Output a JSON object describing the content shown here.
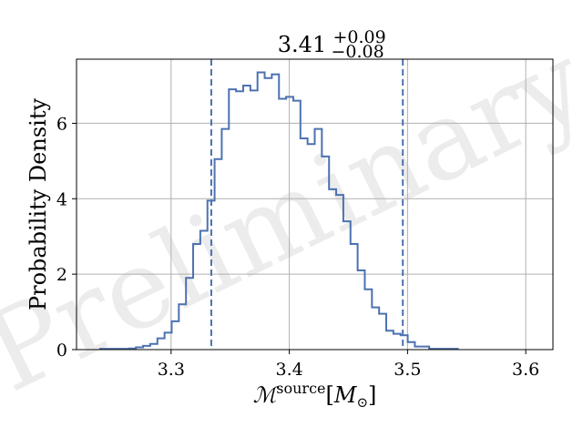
{
  "chart_data": {
    "type": "histogram",
    "title": {
      "value": "3.41",
      "upper": "+0.09",
      "lower": "−0.08"
    },
    "xlabel": {
      "symbol": "ℳ",
      "superscript": "source",
      "units_open": "[",
      "units_symbol": "M",
      "units_subscript": "⊙",
      "units_close": "]"
    },
    "ylabel": "Probability Density",
    "watermark": "Preliminary",
    "xlim": [
      3.22,
      3.623
    ],
    "ylim": [
      0,
      7.7
    ],
    "x_ticks": [
      {
        "value": 3.3,
        "label": "3.3"
      },
      {
        "value": 3.4,
        "label": "3.4"
      },
      {
        "value": 3.5,
        "label": "3.5"
      },
      {
        "value": 3.6,
        "label": "3.6"
      }
    ],
    "y_ticks": [
      {
        "value": 0,
        "label": "0"
      },
      {
        "value": 2,
        "label": "2"
      },
      {
        "value": 4,
        "label": "4"
      },
      {
        "value": 6,
        "label": "6"
      }
    ],
    "grid": true,
    "bin_start": 3.24,
    "bin_width": 0.00605,
    "densities": [
      0.02,
      0.02,
      0.02,
      0.02,
      0.03,
      0.06,
      0.1,
      0.15,
      0.3,
      0.45,
      0.75,
      1.2,
      1.9,
      2.8,
      3.15,
      3.95,
      5.05,
      5.85,
      6.9,
      6.85,
      7.0,
      6.87,
      7.35,
      7.2,
      7.3,
      6.65,
      6.7,
      6.6,
      5.6,
      5.45,
      5.85,
      5.12,
      4.25,
      4.1,
      3.4,
      2.8,
      2.1,
      1.6,
      1.12,
      0.95,
      0.5,
      0.42,
      0.38,
      0.2,
      0.08,
      0.08,
      0.02,
      0.02,
      0.02,
      0.02
    ],
    "credible_interval": [
      3.334,
      3.496
    ],
    "colors": {
      "histogram": "#4c72b0",
      "interval_lines": "#4c72b0",
      "grid": "#b0b0b0"
    }
  }
}
